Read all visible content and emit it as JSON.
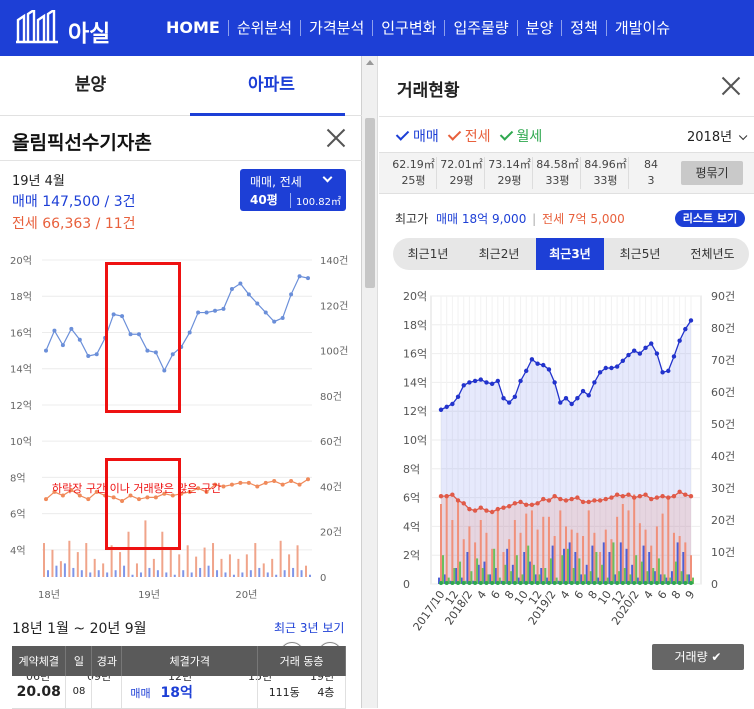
{
  "brand": {
    "name": "아실"
  },
  "nav": {
    "items": [
      "HOME",
      "순위분석",
      "가격분석",
      "인구변화",
      "입주물량",
      "분양",
      "정책",
      "개발이슈"
    ]
  },
  "left_panel": {
    "tabs": [
      "분양",
      "아파트"
    ],
    "apt_name": "올림픽선수기자촌",
    "latest_date": "19년 4월",
    "sale_summary": "매매 147,500 / 3건",
    "jeonse_summary": "전세 66,363 / 11건",
    "type_select": {
      "deal_types": "매매, 전세",
      "pyeong": "40평",
      "area": "100.82㎡"
    },
    "annotation": "하락장 구간 이나 거래량은 많은 구간",
    "range_label": "18년 1월 ~ 20년 9월",
    "range_link": "최근 3년 보기",
    "slider_ticks": [
      "06년",
      "09년",
      "12년",
      "15년",
      "19년"
    ],
    "table": {
      "headers": [
        "계약체결",
        "일",
        "경과",
        "체결가격",
        "거래 동층"
      ],
      "rows": [
        {
          "date": "20.08",
          "day": "08",
          "elapsed": "",
          "type": "매매",
          "price": "18억",
          "dong": "111동",
          "floor": "4층"
        }
      ]
    }
  },
  "right_panel": {
    "title": "거래현황",
    "filters": [
      "매매",
      "전세",
      "월세"
    ],
    "year": "2018년",
    "sizes": [
      {
        "area": "62.19㎡",
        "py": "25평"
      },
      {
        "area": "72.01㎡",
        "py": "29평"
      },
      {
        "area": "73.14㎡",
        "py": "29평"
      },
      {
        "area": "84.58㎡",
        "py": "33평"
      },
      {
        "area": "84.96㎡",
        "py": "33평"
      },
      {
        "area": "84",
        "py": "3"
      }
    ],
    "pyeong_button": "평묶기",
    "max_price_label": "최고가",
    "max_sale": "매매 18억 9,000",
    "max_jeonse": "전세 7억 5,000",
    "list_button": "리스트 보기",
    "period_tabs": [
      "최근1년",
      "최근2년",
      "최근3년",
      "최근5년",
      "전체년도"
    ],
    "active_period": "최근3년",
    "volume_button": "거래량 ✔"
  },
  "colors": {
    "primary": "#1d3fd6",
    "sale": "#3b5bd8",
    "jeonse": "#e8603c",
    "monthly": "#2fa84f"
  },
  "chart_data": [
    {
      "type": "line",
      "name": "left-mini-chart",
      "y_left_ticks": [
        "20억",
        "18억",
        "16억",
        "14억",
        "12억",
        "10억",
        "8억",
        "6억",
        "4억"
      ],
      "y_right_ticks": [
        "140건",
        "120건",
        "100건",
        "80건",
        "60건",
        "40건",
        "20건",
        "0"
      ],
      "x_ticks": [
        "18년",
        "19년",
        "20년"
      ],
      "ylim": [
        3,
        20
      ],
      "y2lim": [
        0,
        140
      ],
      "series": [
        {
          "name": "매매",
          "values": [
            15,
            16.1,
            15.3,
            16.2,
            15.6,
            14.7,
            14.8,
            15.7,
            17,
            16.9,
            15.9,
            15.9,
            15,
            14.9,
            13.9,
            14.8,
            15.2,
            16,
            17.1,
            17.1,
            17.2,
            17.3,
            18.4,
            18.7,
            18.1,
            17.6,
            17.1,
            16.6,
            16.8,
            18.1,
            19.1,
            19
          ]
        },
        {
          "name": "전세",
          "values": [
            6.8,
            7.2,
            7.0,
            7.3,
            7.0,
            6.8,
            7.2,
            7.0,
            6.9,
            6.7,
            7.0,
            6.8,
            6.9,
            6.9,
            7.1,
            7.0,
            7.1,
            7.2,
            7.4,
            7.2,
            7.6,
            7.5,
            7.6,
            7.7,
            7.7,
            7.5,
            7.7,
            7.8,
            7.6,
            7.8,
            7.6,
            7.9
          ]
        }
      ],
      "volume": [
        {
          "name": "매매",
          "values": [
            3,
            5,
            6,
            4,
            3,
            2,
            3,
            2,
            3,
            5,
            1,
            2,
            4,
            3,
            2,
            1,
            3,
            2,
            4,
            5,
            3,
            2,
            1,
            2,
            3,
            4,
            2,
            1,
            3,
            4,
            3,
            1
          ]
        },
        {
          "name": "전세",
          "values": [
            15,
            12,
            7,
            16,
            11,
            15,
            8,
            6,
            14,
            11,
            20,
            6,
            25,
            8,
            20,
            12,
            10,
            14,
            9,
            13,
            15,
            8,
            10,
            8,
            10,
            15,
            6,
            8,
            16,
            10,
            14,
            5
          ]
        }
      ]
    },
    {
      "type": "line",
      "name": "right-main-chart",
      "y_left_ticks": [
        "20억",
        "18억",
        "16억",
        "14억",
        "12억",
        "10억",
        "8억",
        "6억",
        "4억",
        "2억",
        "0"
      ],
      "y_right_ticks": [
        "90건",
        "80건",
        "70건",
        "60건",
        "50건",
        "40건",
        "30건",
        "20건",
        "10건",
        "0"
      ],
      "x_ticks": [
        "2017/10",
        "12",
        "2018/2",
        "4",
        "6",
        "8",
        "10",
        "12",
        "2019/2",
        "4",
        "6",
        "8",
        "10",
        "12",
        "2020/2",
        "4",
        "6",
        "8",
        "9"
      ],
      "ylim": [
        0,
        20
      ],
      "y2lim": [
        0,
        90
      ],
      "series": [
        {
          "name": "매매",
          "values": [
            12.1,
            12.3,
            12.5,
            13.0,
            13.8,
            14.0,
            14.1,
            14.2,
            14.0,
            13.9,
            14.1,
            12.9,
            12.6,
            13.0,
            14.1,
            14.8,
            15.6,
            15.3,
            15.2,
            14.9,
            14.0,
            12.6,
            12.9,
            12.5,
            12.9,
            13.4,
            13.1,
            14.0,
            14.7,
            15.0,
            15.0,
            15.1,
            15.5,
            15.9,
            16.2,
            16.0,
            16.4,
            16.7,
            16.0,
            14.7,
            14.8,
            15.8,
            16.9,
            17.7,
            18.3
          ]
        },
        {
          "name": "전세",
          "values": [
            6.1,
            6.1,
            6.2,
            5.8,
            5.6,
            5.2,
            5.1,
            5.3,
            5.1,
            5.0,
            5.2,
            5.3,
            5.4,
            5.6,
            5.7,
            5.5,
            5.5,
            5.6,
            5.9,
            5.8,
            6.1,
            5.9,
            5.8,
            5.9,
            6.0,
            5.7,
            5.7,
            5.8,
            5.8,
            5.9,
            6.0,
            6.2,
            6.1,
            6.2,
            6.0,
            6.1,
            6.2,
            5.9,
            6.0,
            6.1,
            6.0,
            6.1,
            6.4,
            6.2,
            6.1
          ]
        }
      ],
      "volume": [
        {
          "name": "매매",
          "values": [
            2,
            3,
            1,
            5,
            2,
            10,
            1,
            6,
            7,
            3,
            5,
            1,
            11,
            6,
            2,
            10,
            7,
            3,
            5,
            2,
            12,
            1,
            11,
            13,
            10,
            3,
            6,
            12,
            2,
            13,
            10,
            3,
            13,
            11,
            6,
            2,
            12,
            10,
            4,
            3,
            2,
            4,
            13,
            10,
            3
          ]
        },
        {
          "name": "전세",
          "values": [
            25,
            28,
            20,
            26,
            14,
            18,
            13,
            20,
            16,
            11,
            24,
            10,
            14,
            20,
            16,
            22,
            23,
            17,
            21,
            21,
            15,
            23,
            18,
            17,
            16,
            15,
            23,
            16,
            10,
            17,
            14,
            21,
            25,
            23,
            28,
            19,
            17,
            12,
            18,
            22,
            27,
            16,
            15,
            13,
            9
          ]
        },
        {
          "name": "월세",
          "values": [
            9,
            2,
            5,
            7,
            1,
            4,
            8,
            5,
            3,
            11,
            2,
            6,
            4,
            9,
            3,
            12,
            6,
            3,
            5,
            8,
            2,
            9,
            11,
            5,
            8,
            3,
            4,
            10,
            6,
            2,
            13,
            4,
            5,
            3,
            9,
            7,
            4,
            5,
            8,
            3,
            2,
            7,
            4,
            3,
            2
          ]
        }
      ]
    }
  ]
}
